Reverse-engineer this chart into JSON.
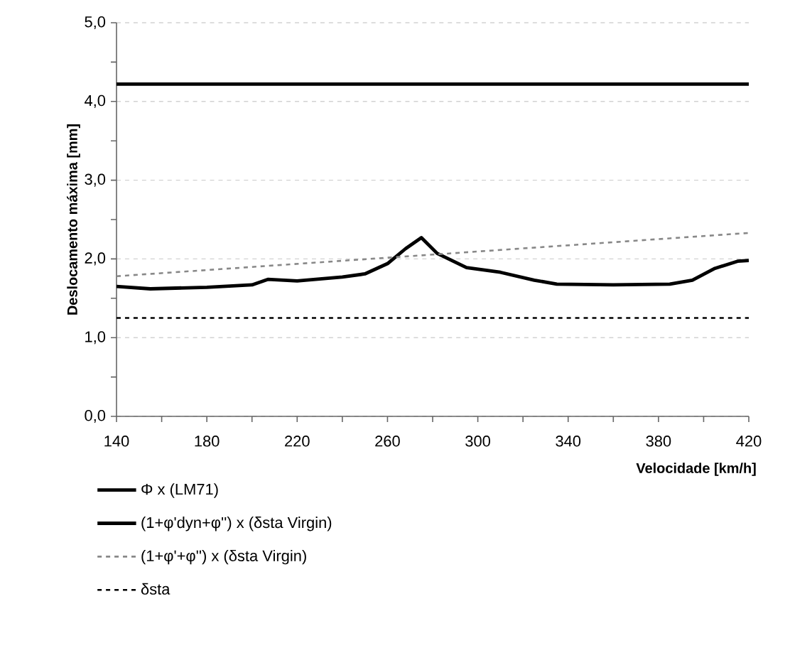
{
  "chart_data": {
    "type": "line",
    "xlabel": "Velocidade [km/h]",
    "ylabel": "Deslocamento máxima [mm]",
    "xlim": [
      140,
      420
    ],
    "xticks": [
      140,
      180,
      220,
      260,
      300,
      340,
      380,
      420
    ],
    "ylim": [
      0,
      5
    ],
    "yticks": [
      {
        "value": 0,
        "label": "0,0"
      },
      {
        "value": 1,
        "label": "1,0"
      },
      {
        "value": 2,
        "label": "2,0"
      },
      {
        "value": 3,
        "label": "3,0"
      },
      {
        "value": 4,
        "label": "4,0"
      },
      {
        "value": 5,
        "label": "5,0"
      }
    ],
    "grid": "y",
    "legend": "bottom",
    "marker": "none",
    "series": [
      {
        "name": "Φ x (LM71)",
        "color": "#000000",
        "line_style": "solid",
        "x": [
          140,
          420
        ],
        "values": [
          4.22,
          4.22
        ]
      },
      {
        "name": "(1+φ'dyn+φ'') x (δsta Virgin)",
        "color": "#000000",
        "line_style": "solid",
        "x": [
          140,
          155,
          180,
          200,
          207,
          220,
          240,
          250,
          260,
          268,
          275,
          282,
          295,
          310,
          325,
          335,
          360,
          385,
          395,
          405,
          415,
          420
        ],
        "values": [
          1.65,
          1.62,
          1.64,
          1.67,
          1.74,
          1.72,
          1.77,
          1.81,
          1.94,
          2.13,
          2.27,
          2.07,
          1.89,
          1.83,
          1.73,
          1.68,
          1.67,
          1.68,
          1.73,
          1.88,
          1.97,
          1.98
        ]
      },
      {
        "name": "(1+φ'+φ'') x (δsta Virgin)",
        "color": "#888888",
        "line_style": "dashed",
        "x": [
          140,
          420
        ],
        "values": [
          1.78,
          2.33
        ]
      },
      {
        "name": "δsta",
        "color": "#000000",
        "line_style": "dashed",
        "x": [
          140,
          420
        ],
        "values": [
          1.25,
          1.25
        ]
      }
    ]
  }
}
